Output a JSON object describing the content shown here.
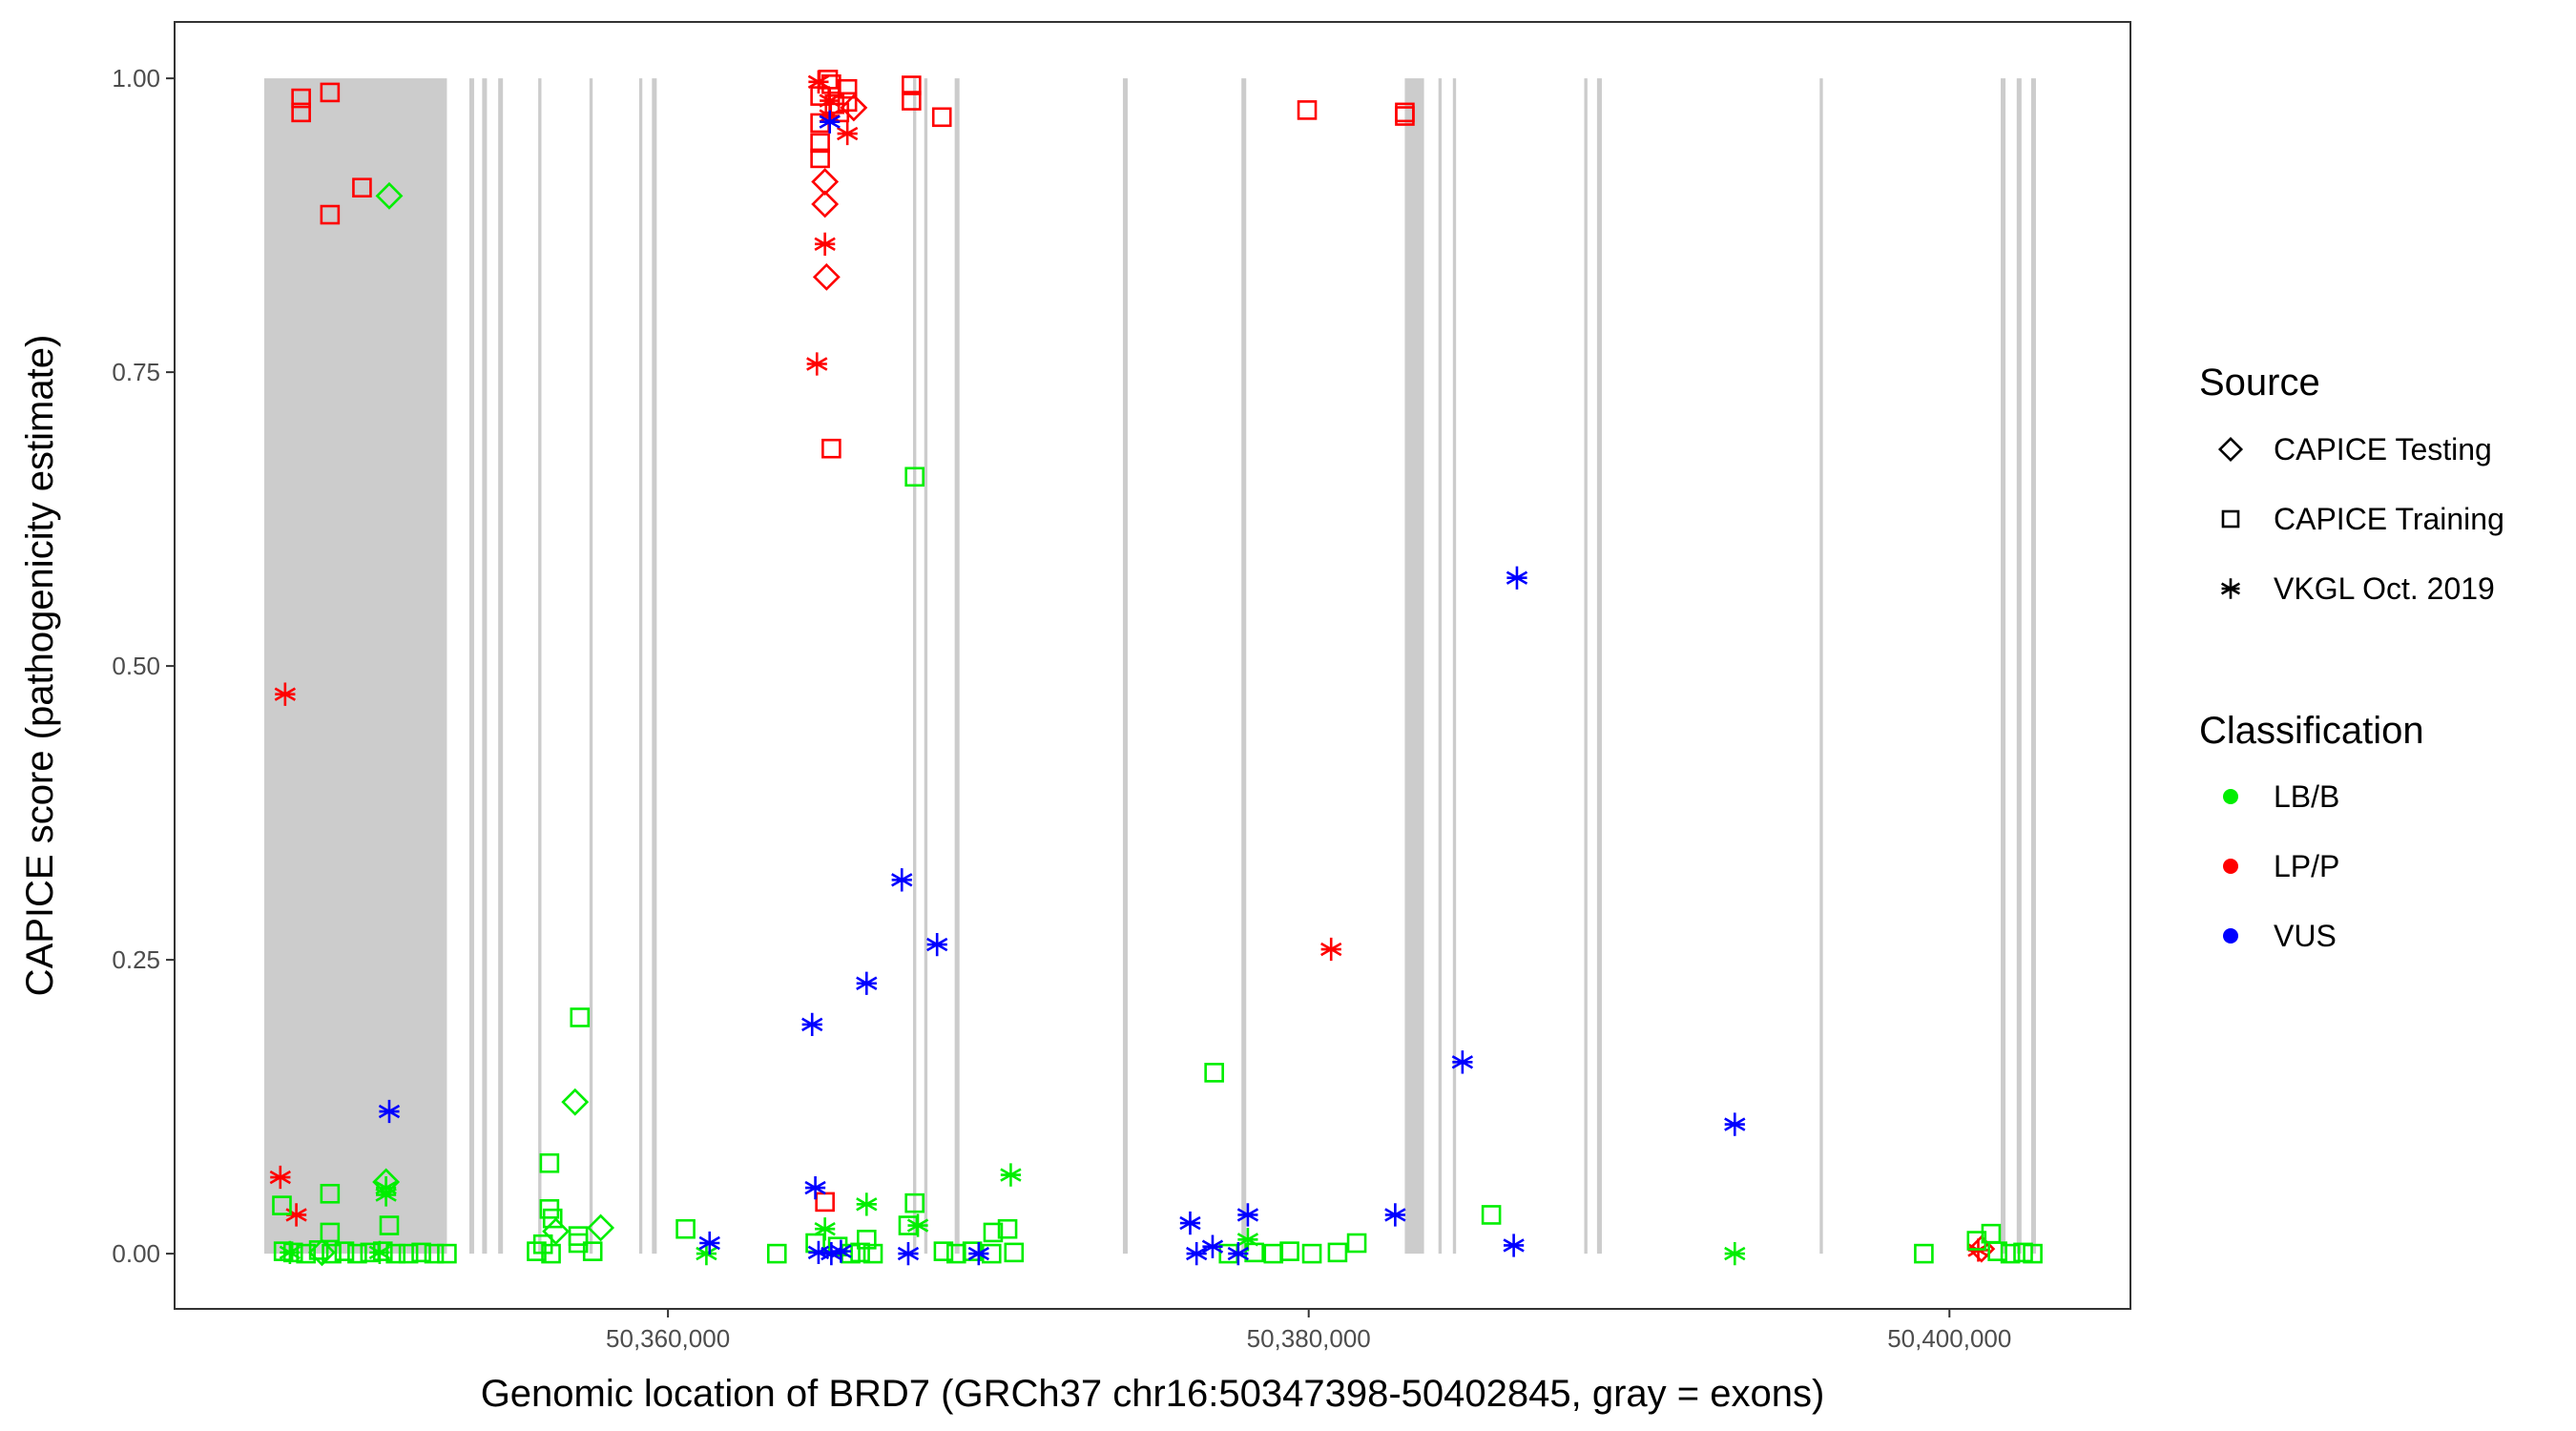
{
  "chart_data": {
    "type": "scatter",
    "title": "",
    "xlabel": "Genomic location of BRD7 (GRCh37 chr16:50347398-50402845, gray = exons)",
    "ylabel": "CAPICE score (pathogenicity estimate)",
    "xlim": [
      50344600,
      50405650
    ],
    "ylim": [
      -0.047,
      1.048
    ],
    "x_ticks": [
      50360000,
      50380000,
      50400000
    ],
    "x_tick_labels": [
      "50,360,000",
      "50,380,000",
      "50,400,000"
    ],
    "y_ticks": [
      0.0,
      0.25,
      0.5,
      0.75,
      1.0
    ],
    "y_tick_labels": [
      "0.00",
      "0.25",
      "0.50",
      "0.75",
      "1.00"
    ],
    "grid": false,
    "exons": [
      [
        50347398,
        50353100
      ],
      [
        50353800,
        50353950
      ],
      [
        50354200,
        50354350
      ],
      [
        50354700,
        50354850
      ],
      [
        50355950,
        50356050
      ],
      [
        50357550,
        50357650
      ],
      [
        50359100,
        50359200
      ],
      [
        50359500,
        50359650
      ],
      [
        50367650,
        50367750
      ],
      [
        50368000,
        50368100
      ],
      [
        50368950,
        50369100
      ],
      [
        50374200,
        50374350
      ],
      [
        50377900,
        50378050
      ],
      [
        50383000,
        50383600
      ],
      [
        50384050,
        50384150
      ],
      [
        50384500,
        50384600
      ],
      [
        50388600,
        50388700
      ],
      [
        50389000,
        50389150
      ],
      [
        50395950,
        50396050
      ],
      [
        50401600,
        50401750
      ],
      [
        50402100,
        50402250
      ],
      [
        50402550,
        50402700
      ]
    ],
    "exon_color": "#cccccc",
    "legends": [
      {
        "title": "Source",
        "entries": [
          {
            "label": "CAPICE Testing",
            "shape": "diamond"
          },
          {
            "label": "CAPICE Training",
            "shape": "square"
          },
          {
            "label": "VKGL Oct. 2019",
            "shape": "asterisk"
          }
        ]
      },
      {
        "title": "Classification",
        "entries": [
          {
            "label": "LB/B",
            "color": "#00ee00"
          },
          {
            "label": "LP/P",
            "color": "#ff0000"
          },
          {
            "label": "VUS",
            "color": "#0000ff"
          }
        ]
      }
    ],
    "colors": {
      "LB/B": "#00ee00",
      "LP/P": "#ff0000",
      "VUS": "#0000ff"
    },
    "series": [
      {
        "source": "CAPICE Training",
        "classification": "LP/P",
        "points": [
          [
            50348550,
            0.983
          ],
          [
            50348550,
            0.971
          ],
          [
            50349450,
            0.988
          ],
          [
            50349450,
            0.884
          ],
          [
            50350450,
            0.907
          ],
          [
            50364750,
            0.985
          ],
          [
            50364750,
            0.962
          ],
          [
            50364750,
            0.945
          ],
          [
            50364750,
            0.932
          ],
          [
            50365000,
            0.999
          ],
          [
            50365100,
            0.995
          ],
          [
            50365200,
            0.978
          ],
          [
            50365350,
            0.971
          ],
          [
            50365600,
            0.991
          ],
          [
            50365600,
            0.98
          ],
          [
            50367600,
            0.994
          ],
          [
            50367600,
            0.981
          ],
          [
            50368550,
            0.967
          ],
          [
            50379950,
            0.973
          ],
          [
            50383000,
            0.971
          ],
          [
            50383000,
            0.968
          ],
          [
            50365100,
            0.685
          ],
          [
            50364900,
            0.044
          ]
        ]
      },
      {
        "source": "CAPICE Testing",
        "classification": "LP/P",
        "points": [
          [
            50364900,
            0.912
          ],
          [
            50364900,
            0.893
          ],
          [
            50364950,
            0.831
          ],
          [
            50365800,
            0.975
          ],
          [
            50401000,
            0.004
          ]
        ]
      },
      {
        "source": "VKGL Oct. 2019",
        "classification": "LP/P",
        "points": [
          [
            50364700,
            0.997
          ],
          [
            50365050,
            0.981
          ],
          [
            50365050,
            0.968
          ],
          [
            50365600,
            0.953
          ],
          [
            50364900,
            0.859
          ],
          [
            50364650,
            0.757
          ],
          [
            50348050,
            0.476
          ],
          [
            50347900,
            0.065
          ],
          [
            50348400,
            0.033
          ],
          [
            50380700,
            0.259
          ],
          [
            50400900,
            0.003
          ]
        ]
      },
      {
        "source": "CAPICE Training",
        "classification": "LB/B",
        "points": [
          [
            50367700,
            0.661
          ],
          [
            50357250,
            0.201
          ],
          [
            50377050,
            0.154
          ],
          [
            50356300,
            0.077
          ],
          [
            50356300,
            0.038
          ],
          [
            50356400,
            0.03
          ],
          [
            50347950,
            0.041
          ],
          [
            50349450,
            0.051
          ],
          [
            50351300,
            0.024
          ],
          [
            50349450,
            0.018
          ],
          [
            50357200,
            0.015
          ],
          [
            50357200,
            0.009
          ],
          [
            50360550,
            0.021
          ],
          [
            50367700,
            0.043
          ],
          [
            50367500,
            0.024
          ],
          [
            50370600,
            0.021
          ],
          [
            50370150,
            0.018
          ],
          [
            50366200,
            0.012
          ],
          [
            50385700,
            0.033
          ],
          [
            50381500,
            0.009
          ],
          [
            50401300,
            0.017
          ],
          [
            50400850,
            0.011
          ],
          [
            50399200,
            0.0
          ],
          [
            50363400,
            0.0
          ],
          [
            50348000,
            0.002
          ],
          [
            50348300,
            0.001
          ],
          [
            50348700,
            0.0
          ],
          [
            50349100,
            0.003
          ],
          [
            50349500,
            0.0
          ],
          [
            50349900,
            0.002
          ],
          [
            50350300,
            0.0
          ],
          [
            50350700,
            0.001
          ],
          [
            50351100,
            0.002
          ],
          [
            50351500,
            0.0
          ],
          [
            50351900,
            0.0
          ],
          [
            50352300,
            0.001
          ],
          [
            50352700,
            0.0
          ],
          [
            50353100,
            0.0
          ],
          [
            50355900,
            0.002
          ],
          [
            50356100,
            0.008
          ],
          [
            50356350,
            0.0
          ],
          [
            50357650,
            0.002
          ],
          [
            50364600,
            0.009
          ],
          [
            50365300,
            0.006
          ],
          [
            50365700,
            0.0
          ],
          [
            50366000,
            0.001
          ],
          [
            50366400,
            0.0
          ],
          [
            50368600,
            0.002
          ],
          [
            50369000,
            0.0
          ],
          [
            50369500,
            0.002
          ],
          [
            50370100,
            0.0
          ],
          [
            50370800,
            0.001
          ],
          [
            50377500,
            0.0
          ],
          [
            50378300,
            0.001
          ],
          [
            50378900,
            0.0
          ],
          [
            50379400,
            0.002
          ],
          [
            50380100,
            0.0
          ],
          [
            50380900,
            0.001
          ],
          [
            50401500,
            0.002
          ],
          [
            50401900,
            0.0
          ],
          [
            50402300,
            0.001
          ],
          [
            50402600,
            0.0
          ]
        ]
      },
      {
        "source": "CAPICE Testing",
        "classification": "LB/B",
        "points": [
          [
            50351300,
            0.9
          ],
          [
            50357100,
            0.129
          ],
          [
            50351200,
            0.061
          ],
          [
            50357900,
            0.022
          ],
          [
            50356500,
            0.019
          ],
          [
            50349200,
            0.001
          ]
        ]
      },
      {
        "source": "VKGL Oct. 2019",
        "classification": "LB/B",
        "points": [
          [
            50351200,
            0.056
          ],
          [
            50351200,
            0.05
          ],
          [
            50366200,
            0.042
          ],
          [
            50370700,
            0.067
          ],
          [
            50367800,
            0.024
          ],
          [
            50378100,
            0.012
          ],
          [
            50361200,
            0.0
          ],
          [
            50364900,
            0.021
          ],
          [
            50393300,
            0.0
          ],
          [
            50348200,
            0.001
          ],
          [
            50351000,
            0.001
          ]
        ]
      },
      {
        "source": "VKGL Oct. 2019",
        "classification": "VUS",
        "points": [
          [
            50365050,
            0.963
          ],
          [
            50386500,
            0.575
          ],
          [
            50367300,
            0.318
          ],
          [
            50368400,
            0.263
          ],
          [
            50366200,
            0.23
          ],
          [
            50364500,
            0.195
          ],
          [
            50384800,
            0.163
          ],
          [
            50351300,
            0.121
          ],
          [
            50393300,
            0.11
          ],
          [
            50364600,
            0.056
          ],
          [
            50378100,
            0.033
          ],
          [
            50382700,
            0.033
          ],
          [
            50376300,
            0.026
          ],
          [
            50361300,
            0.009
          ],
          [
            50386400,
            0.007
          ],
          [
            50377000,
            0.006
          ],
          [
            50364700,
            0.001
          ],
          [
            50365100,
            0.0
          ],
          [
            50365400,
            0.002
          ],
          [
            50367500,
            0.0
          ],
          [
            50369700,
            0.0
          ],
          [
            50376500,
            0.0
          ],
          [
            50377800,
            0.0
          ]
        ]
      }
    ]
  }
}
